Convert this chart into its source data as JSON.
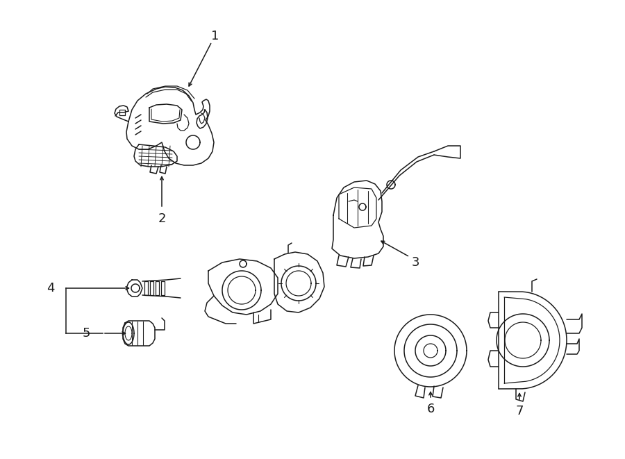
{
  "background_color": "#ffffff",
  "line_color": "#1a1a1a",
  "line_width": 1.1,
  "fig_width": 9.0,
  "fig_height": 6.61,
  "dpi": 100,
  "label_fontsize": 13
}
